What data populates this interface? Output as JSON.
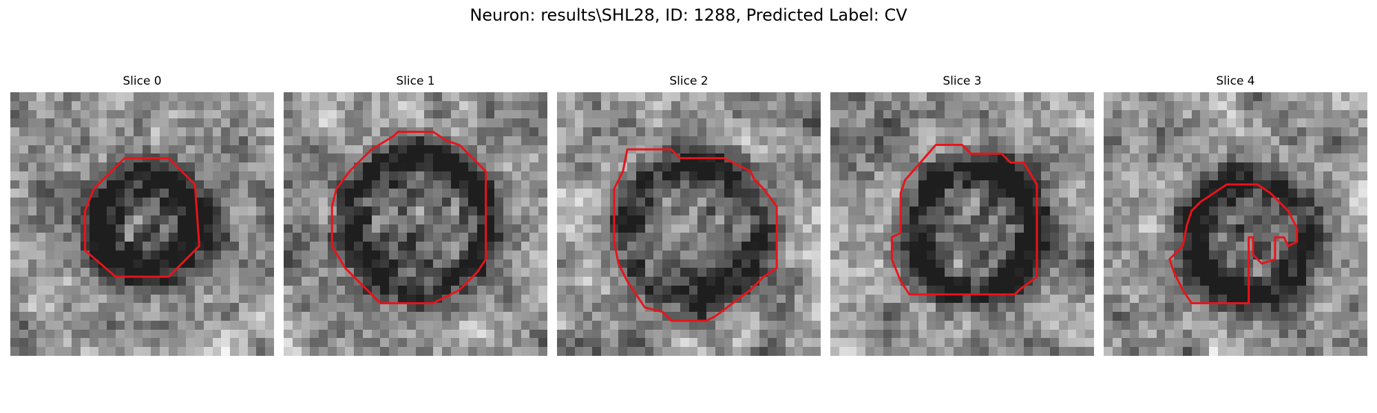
{
  "figure": {
    "title": "Neuron: results\\SHL28, ID: 1288, Predicted Label: CV"
  },
  "slices": [
    {
      "title": "Slice 0"
    },
    {
      "title": "Slice 1"
    },
    {
      "title": "Slice 2"
    },
    {
      "title": "Slice 3"
    },
    {
      "title": "Slice 4"
    }
  ],
  "colors": {
    "contour": "#e8141a",
    "background": "#ffffff"
  }
}
